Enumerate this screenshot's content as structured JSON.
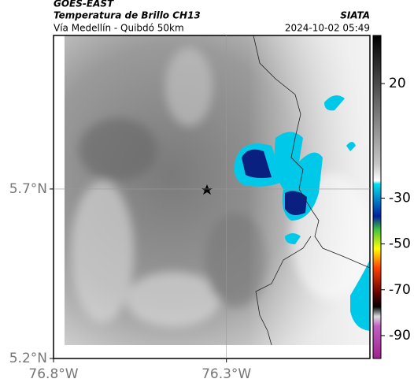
{
  "header": {
    "satellite": "GOES-EAST",
    "product": "Temperatura de Brillo CH13",
    "region": "Vía Medellín - Quibdó 50km",
    "source": "SIATA",
    "datetime": "2024-10-02 05:49"
  },
  "map": {
    "xlim": [
      -76.8,
      -75.885
    ],
    "ylim": [
      5.2,
      6.153
    ],
    "xticks": [
      {
        "value": -76.8,
        "label": "76.8°W"
      },
      {
        "value": -76.3,
        "label": "76.3°W"
      }
    ],
    "yticks": [
      {
        "value": 5.2,
        "label": "5.2°N"
      },
      {
        "value": 5.7,
        "label": "5.7°N"
      }
    ]
  },
  "colorbar": {
    "lim": [
      -100,
      41
    ],
    "ticks": [
      20,
      -30,
      -50,
      -70,
      -90
    ]
  }
}
